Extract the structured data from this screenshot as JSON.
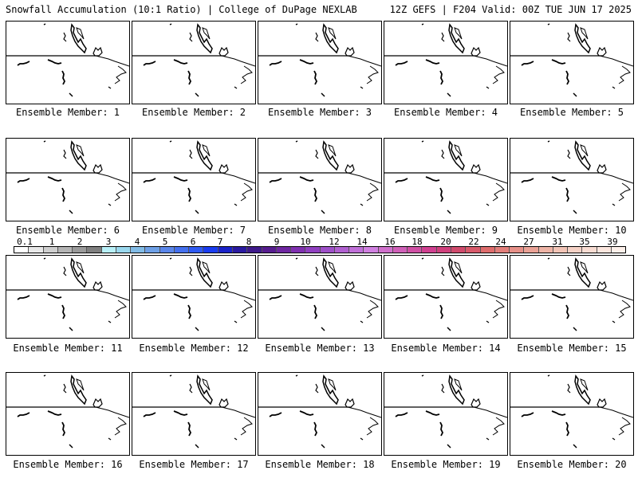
{
  "header": {
    "title_left": "Snowfall Accumulation (10:1 Ratio) | College of DuPage NEXLAB",
    "title_right": "12Z GEFS | F204 Valid: 00Z TUE JUN 17 2025"
  },
  "panels": [
    {
      "label": "Ensemble Member: 1"
    },
    {
      "label": "Ensemble Member: 2"
    },
    {
      "label": "Ensemble Member: 3"
    },
    {
      "label": "Ensemble Member: 4"
    },
    {
      "label": "Ensemble Member: 5"
    },
    {
      "label": "Ensemble Member: 6"
    },
    {
      "label": "Ensemble Member: 7"
    },
    {
      "label": "Ensemble Member: 8"
    },
    {
      "label": "Ensemble Member: 9"
    },
    {
      "label": "Ensemble Member: 10"
    },
    {
      "label": "Ensemble Member: 11"
    },
    {
      "label": "Ensemble Member: 12"
    },
    {
      "label": "Ensemble Member: 13"
    },
    {
      "label": "Ensemble Member: 14"
    },
    {
      "label": "Ensemble Member: 15"
    },
    {
      "label": "Ensemble Member: 16"
    },
    {
      "label": "Ensemble Member: 17"
    },
    {
      "label": "Ensemble Member: 18"
    },
    {
      "label": "Ensemble Member: 19"
    },
    {
      "label": "Ensemble Member: 20"
    }
  ],
  "colorbar": {
    "tick_labels": [
      "0.1",
      "1",
      "2",
      "3",
      "4",
      "5",
      "6",
      "7",
      "8",
      "9",
      "10",
      "12",
      "14",
      "16",
      "18",
      "20",
      "22",
      "24",
      "27",
      "31",
      "35",
      "39"
    ],
    "colors": [
      "#ffffff",
      "#e8e8e8",
      "#cfcfcf",
      "#b4b4b4",
      "#9a9a9a",
      "#7f7f7f",
      "#b8f0f8",
      "#9ad8ee",
      "#82bce6",
      "#6ea0e6",
      "#5a86ea",
      "#4470ee",
      "#2e5af2",
      "#1a3cf0",
      "#1a22c8",
      "#2a1aa0",
      "#3e1a8a",
      "#561c8e",
      "#6e26a0",
      "#8030b0",
      "#9040c0",
      "#9e50c8",
      "#b060d0",
      "#c070d8",
      "#d080e0",
      "#d070cc",
      "#d060b8",
      "#d050a4",
      "#d04090",
      "#d0407c",
      "#d04a6c",
      "#d85a6a",
      "#de6c6c",
      "#e27e7a",
      "#e69088",
      "#eaa296",
      "#eeb4a6",
      "#f2c4b6",
      "#f6d2c6",
      "#f8dcd2",
      "#fbe6de",
      "#fdf0ea"
    ]
  }
}
